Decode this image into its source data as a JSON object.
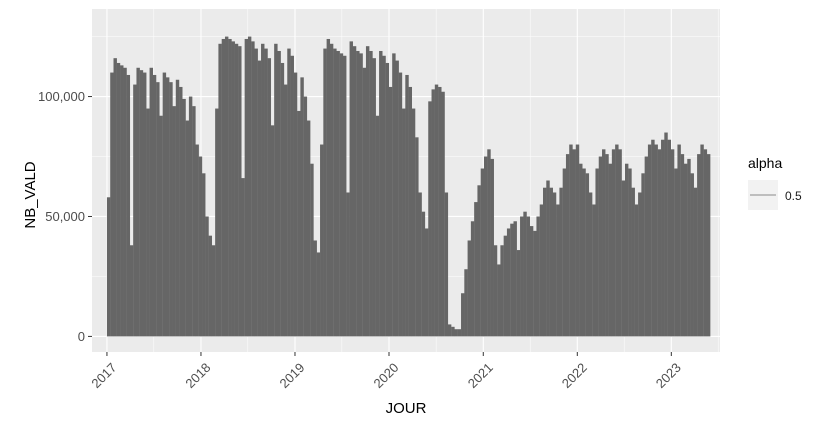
{
  "chart_data": {
    "type": "bar",
    "xlabel": "JOUR",
    "ylabel": "NB_VALD",
    "x_tick_labels": [
      "2017",
      "2018",
      "2019",
      "2020",
      "2021",
      "2022",
      "2023"
    ],
    "y_tick_labels": [
      "0",
      "50,000",
      "100,000"
    ],
    "y_ticks": [
      0,
      50000,
      100000
    ],
    "x_range": [
      "2016-11-04",
      "2023-07-09"
    ],
    "ylim": [
      -6500,
      136500
    ],
    "grid": true,
    "legend": {
      "title": "alpha",
      "entries": [
        "0.5"
      ],
      "placement": "right"
    },
    "colors": {
      "panel": "#ebebeb",
      "grid": "#ffffff",
      "bars": "#666666",
      "legend_key": "#f2f2f2"
    },
    "x_start": "2017-01-01",
    "x_end": "2023-06-01",
    "series": [
      {
        "values": [
          58000,
          110000,
          116000,
          114000,
          113000,
          112000,
          109000,
          38000,
          105000,
          112000,
          111000,
          110000,
          95000,
          112000,
          109000,
          106000,
          92000,
          110000,
          108000,
          106000,
          96000,
          107000,
          104000,
          99000,
          90000,
          100000,
          96000,
          80000,
          75000,
          68000,
          50000,
          42000,
          38000,
          95000,
          122000,
          124000,
          125000,
          124000,
          123000,
          122000,
          121000,
          66000,
          124000,
          125000,
          123000,
          120000,
          115000,
          122000,
          120000,
          116000,
          88000,
          122000,
          119000,
          114000,
          105000,
          120000,
          117000,
          110000,
          94000,
          108000,
          100000,
          90000,
          72000,
          40000,
          35000,
          80000,
          120000,
          124000,
          122000,
          120000,
          119000,
          118000,
          117000,
          60000,
          123000,
          121000,
          119000,
          118000,
          112000,
          121000,
          119000,
          116000,
          92000,
          119000,
          117000,
          114000,
          104000,
          118000,
          115000,
          110000,
          95000,
          109000,
          104000,
          95000,
          83000,
          60000,
          52000,
          45000,
          98000,
          103000,
          105000,
          104000,
          102000,
          60000,
          5000,
          4000,
          3000,
          3000,
          18000,
          28000,
          40000,
          48000,
          56000,
          63000,
          70000,
          75000,
          78000,
          74000,
          38000,
          30000,
          38000,
          42000,
          45000,
          47000,
          48000,
          36000,
          50000,
          52000,
          50000,
          46000,
          44000,
          50000,
          55000,
          62000,
          65000,
          62000,
          60000,
          55000,
          62000,
          70000,
          76000,
          80000,
          78000,
          80000,
          72000,
          70000,
          68000,
          60000,
          55000,
          70000,
          75000,
          78000,
          76000,
          72000,
          78000,
          80000,
          78000,
          65000,
          72000,
          70000,
          62000,
          55000,
          60000,
          68000,
          75000,
          80000,
          82000,
          80000,
          78000,
          82000,
          85000,
          82000,
          78000,
          70000,
          80000,
          76000,
          72000,
          74000,
          68000,
          62000,
          76000,
          80000,
          78000,
          76000
        ]
      }
    ]
  }
}
